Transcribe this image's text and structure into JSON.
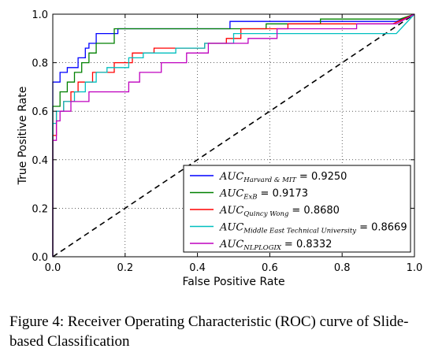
{
  "caption": "Figure 4: Receiver Operating Characteristic (ROC) curve of Slide-based Classification",
  "chart_data": {
    "type": "line",
    "title": "",
    "xlabel": "False Positive Rate",
    "ylabel": "True Positive Rate",
    "xlim": [
      0,
      1
    ],
    "ylim": [
      0,
      1
    ],
    "xticks": [
      "0.0",
      "0.2",
      "0.4",
      "0.6",
      "0.8",
      "1.0"
    ],
    "yticks": [
      "0.0",
      "0.2",
      "0.4",
      "0.6",
      "0.8",
      "1.0"
    ],
    "grid": true,
    "legend_position": "lower-right",
    "series": [
      {
        "name": "AUC_Harvard&MIT",
        "auc_name": "AUC",
        "subscript": "Harvard & MIT",
        "auc_value": "= 0.9250",
        "color": "#0000ff",
        "x": [
          0,
          0,
          0.02,
          0.02,
          0.04,
          0.04,
          0.07,
          0.07,
          0.09,
          0.09,
          0.1,
          0.1,
          0.12,
          0.12,
          0.18,
          0.18,
          0.26,
          0.26,
          0.49,
          0.49,
          0.95,
          1.0
        ],
        "y": [
          0,
          0.72,
          0.72,
          0.76,
          0.76,
          0.78,
          0.78,
          0.82,
          0.82,
          0.86,
          0.86,
          0.88,
          0.88,
          0.92,
          0.92,
          0.94,
          0.94,
          0.94,
          0.94,
          0.97,
          0.97,
          1.0
        ]
      },
      {
        "name": "AUC_ExB",
        "auc_name": "AUC",
        "subscript": "ExB",
        "auc_value": "= 0.9173",
        "color": "#008000",
        "x": [
          0,
          0,
          0.02,
          0.02,
          0.04,
          0.04,
          0.06,
          0.06,
          0.08,
          0.08,
          0.1,
          0.1,
          0.12,
          0.12,
          0.17,
          0.17,
          0.59,
          0.59,
          0.74,
          0.74,
          0.96,
          1.0
        ],
        "y": [
          0,
          0.62,
          0.62,
          0.68,
          0.68,
          0.72,
          0.72,
          0.76,
          0.76,
          0.8,
          0.8,
          0.84,
          0.84,
          0.88,
          0.88,
          0.94,
          0.94,
          0.96,
          0.96,
          0.98,
          0.98,
          1.0
        ]
      },
      {
        "name": "AUC_QuincyWong",
        "auc_name": "AUC",
        "subscript": "Quincy Wong",
        "auc_value": "= 0.8680",
        "color": "#ff0000",
        "x": [
          0,
          0,
          0.01,
          0.01,
          0.03,
          0.03,
          0.05,
          0.05,
          0.07,
          0.07,
          0.11,
          0.11,
          0.17,
          0.17,
          0.22,
          0.22,
          0.24,
          0.24,
          0.28,
          0.28,
          0.42,
          0.42,
          0.48,
          0.48,
          0.52,
          0.52,
          0.65,
          0.65,
          0.94,
          1.0
        ],
        "y": [
          0,
          0.5,
          0.5,
          0.6,
          0.6,
          0.64,
          0.64,
          0.68,
          0.68,
          0.72,
          0.72,
          0.76,
          0.76,
          0.8,
          0.8,
          0.84,
          0.84,
          0.84,
          0.84,
          0.86,
          0.86,
          0.88,
          0.88,
          0.9,
          0.9,
          0.94,
          0.94,
          0.96,
          0.96,
          1.0
        ]
      },
      {
        "name": "AUC_MiddleEastTechnicalUniversity",
        "auc_name": "AUC",
        "subscript": "Middle East Technical University",
        "auc_value": "= 0.8669",
        "color": "#00bfbf",
        "x": [
          0,
          0,
          0.01,
          0.01,
          0.03,
          0.03,
          0.06,
          0.06,
          0.09,
          0.09,
          0.12,
          0.12,
          0.15,
          0.15,
          0.21,
          0.21,
          0.25,
          0.25,
          0.34,
          0.34,
          0.42,
          0.42,
          0.5,
          0.5,
          0.95,
          1.0
        ],
        "y": [
          0,
          0.55,
          0.55,
          0.6,
          0.6,
          0.64,
          0.64,
          0.68,
          0.68,
          0.72,
          0.72,
          0.76,
          0.76,
          0.78,
          0.78,
          0.82,
          0.82,
          0.84,
          0.84,
          0.86,
          0.86,
          0.88,
          0.88,
          0.92,
          0.92,
          1.0
        ]
      },
      {
        "name": "AUC_NLPLOGIX",
        "auc_name": "AUC",
        "subscript": "NLPLOGIX",
        "auc_value": "= 0.8332",
        "color": "#bf00bf",
        "x": [
          0,
          0,
          0.01,
          0.01,
          0.02,
          0.02,
          0.05,
          0.05,
          0.1,
          0.1,
          0.21,
          0.21,
          0.24,
          0.24,
          0.3,
          0.3,
          0.37,
          0.37,
          0.43,
          0.43,
          0.54,
          0.54,
          0.62,
          0.62,
          0.84,
          0.84,
          0.95,
          1.0
        ],
        "y": [
          0,
          0.48,
          0.48,
          0.56,
          0.56,
          0.6,
          0.6,
          0.64,
          0.64,
          0.68,
          0.68,
          0.72,
          0.72,
          0.76,
          0.76,
          0.8,
          0.8,
          0.84,
          0.84,
          0.88,
          0.88,
          0.9,
          0.9,
          0.94,
          0.94,
          0.96,
          0.96,
          1.0
        ]
      }
    ],
    "diagonal": {
      "x": [
        0,
        1
      ],
      "y": [
        0,
        1
      ],
      "style": "dashed",
      "color": "#000000"
    }
  }
}
